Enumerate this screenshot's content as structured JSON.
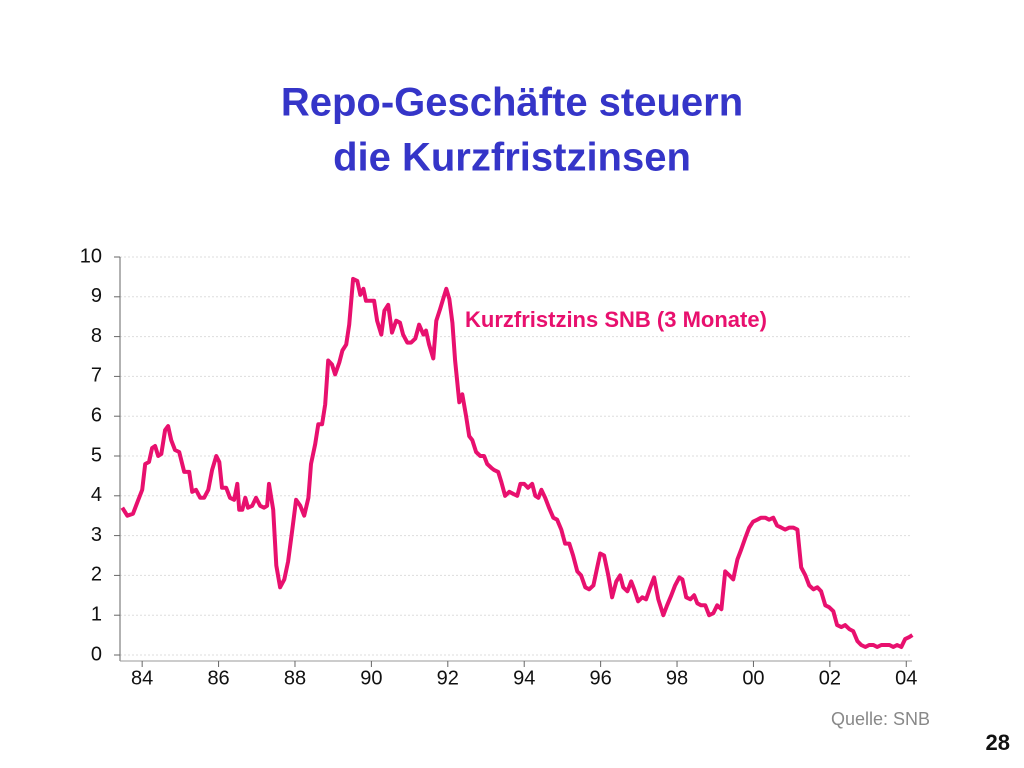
{
  "chart_data": {
    "type": "line",
    "title": [
      "Repo-Geschäfte steuern",
      "die Kurzfristzinsen"
    ],
    "source": "Quelle: SNB",
    "page_number": "28",
    "xlim": [
      1983.42,
      2004.15
    ],
    "ylim": [
      0,
      10
    ],
    "yticks": [
      0,
      1,
      2,
      3,
      4,
      5,
      6,
      7,
      8,
      9,
      10
    ],
    "xticks": [
      {
        "value": 1984,
        "label": "84"
      },
      {
        "value": 1986,
        "label": "86"
      },
      {
        "value": 1988,
        "label": "88"
      },
      {
        "value": 1990,
        "label": "90"
      },
      {
        "value": 1992,
        "label": "92"
      },
      {
        "value": 1994,
        "label": "94"
      },
      {
        "value": 1996,
        "label": "96"
      },
      {
        "value": 1998,
        "label": "98"
      },
      {
        "value": 2000,
        "label": "00"
      },
      {
        "value": 2002,
        "label": "02"
      },
      {
        "value": 2004,
        "label": "04"
      }
    ],
    "grid": true,
    "x": [
      1983.48,
      1983.61,
      1983.76,
      1983.9,
      1984.0,
      1984.08,
      1984.18,
      1984.26,
      1984.34,
      1984.42,
      1984.5,
      1984.6,
      1984.68,
      1984.76,
      1984.86,
      1984.97,
      1985.1,
      1985.23,
      1985.31,
      1985.41,
      1985.52,
      1985.62,
      1985.73,
      1985.83,
      1985.94,
      1986.02,
      1986.09,
      1986.2,
      1986.3,
      1986.41,
      1986.49,
      1986.54,
      1986.62,
      1986.7,
      1986.77,
      1986.88,
      1986.98,
      1987.09,
      1987.19,
      1987.27,
      1987.32,
      1987.43,
      1987.51,
      1987.61,
      1987.72,
      1987.82,
      1987.93,
      1988.03,
      1988.14,
      1988.24,
      1988.35,
      1988.42,
      1988.53,
      1988.61,
      1988.71,
      1988.79,
      1988.87,
      1988.97,
      1989.05,
      1989.16,
      1989.24,
      1989.34,
      1989.42,
      1989.52,
      1989.63,
      1989.71,
      1989.79,
      1989.86,
      1989.97,
      1990.07,
      1990.15,
      1990.26,
      1990.34,
      1990.44,
      1990.54,
      1990.65,
      1990.75,
      1990.83,
      1990.94,
      1991.04,
      1991.15,
      1991.25,
      1991.36,
      1991.43,
      1991.51,
      1991.62,
      1991.7,
      1991.8,
      1991.88,
      1991.96,
      1992.04,
      1992.12,
      1992.19,
      1992.3,
      1992.38,
      1992.48,
      1992.56,
      1992.64,
      1992.74,
      1992.85,
      1992.95,
      1993.03,
      1993.14,
      1993.21,
      1993.32,
      1993.4,
      1993.5,
      1993.61,
      1993.71,
      1993.82,
      1993.9,
      1994.0,
      1994.1,
      1994.21,
      1994.29,
      1994.37,
      1994.45,
      1994.55,
      1994.65,
      1994.76,
      1994.86,
      1994.97,
      1995.07,
      1995.18,
      1995.28,
      1995.39,
      1995.49,
      1995.6,
      1995.7,
      1995.81,
      1995.91,
      1995.99,
      1996.09,
      1996.2,
      1996.3,
      1996.41,
      1996.51,
      1996.59,
      1996.7,
      1996.8,
      1996.88,
      1996.98,
      1997.09,
      1997.19,
      1997.3,
      1997.4,
      1997.51,
      1997.64,
      1997.74,
      1997.85,
      1997.95,
      1998.06,
      1998.14,
      1998.24,
      1998.35,
      1998.45,
      1998.53,
      1998.63,
      1998.74,
      1998.84,
      1998.95,
      1999.05,
      1999.16,
      1999.26,
      1999.37,
      1999.47,
      1999.58,
      1999.68,
      1999.79,
      1999.89,
      1999.99,
      2000.1,
      2000.2,
      2000.31,
      2000.41,
      2000.52,
      2000.62,
      2000.73,
      2000.83,
      2000.94,
      2001.04,
      2001.15,
      2001.25,
      2001.36,
      2001.46,
      2001.57,
      2001.67,
      2001.77,
      2001.88,
      2001.98,
      2002.09,
      2002.19,
      2002.3,
      2002.4,
      2002.51,
      2002.61,
      2002.72,
      2002.82,
      2002.93,
      2003.03,
      2003.14,
      2003.24,
      2003.35,
      2003.45,
      2003.56,
      2003.66,
      2003.76,
      2003.87,
      2003.97,
      2004.08,
      2004.16
    ],
    "series": [
      {
        "name": "Kurzfristzins SNB (3 Monate)",
        "color": "#e8106e",
        "values": [
          3.7,
          3.5,
          3.55,
          3.9,
          4.15,
          4.8,
          4.85,
          5.2,
          5.25,
          5.0,
          5.05,
          5.65,
          5.75,
          5.4,
          5.15,
          5.1,
          4.6,
          4.6,
          4.1,
          4.15,
          3.95,
          3.95,
          4.15,
          4.65,
          5.0,
          4.85,
          4.2,
          4.2,
          3.95,
          3.9,
          4.3,
          3.65,
          3.65,
          3.95,
          3.7,
          3.75,
          3.95,
          3.75,
          3.7,
          3.75,
          4.3,
          3.65,
          2.25,
          1.7,
          1.9,
          2.35,
          3.15,
          3.9,
          3.75,
          3.5,
          3.95,
          4.8,
          5.3,
          5.8,
          5.8,
          6.3,
          7.4,
          7.3,
          7.05,
          7.35,
          7.65,
          7.8,
          8.3,
          9.45,
          9.4,
          9.05,
          9.2,
          8.9,
          8.9,
          8.9,
          8.4,
          8.05,
          8.65,
          8.8,
          8.1,
          8.4,
          8.35,
          8.05,
          7.85,
          7.85,
          7.95,
          8.3,
          8.05,
          8.15,
          7.8,
          7.45,
          8.4,
          8.7,
          8.95,
          9.2,
          8.95,
          8.35,
          7.4,
          6.35,
          6.55,
          6.0,
          5.5,
          5.4,
          5.1,
          5.0,
          5.0,
          4.8,
          4.7,
          4.65,
          4.6,
          4.35,
          4.0,
          4.1,
          4.05,
          4.0,
          4.3,
          4.3,
          4.2,
          4.3,
          4.0,
          3.95,
          4.15,
          3.95,
          3.7,
          3.45,
          3.4,
          3.15,
          2.8,
          2.8,
          2.5,
          2.1,
          2.0,
          1.7,
          1.65,
          1.75,
          2.2,
          2.55,
          2.5,
          2.0,
          1.45,
          1.85,
          2.0,
          1.7,
          1.6,
          1.85,
          1.65,
          1.35,
          1.45,
          1.4,
          1.7,
          1.95,
          1.4,
          1.0,
          1.25,
          1.5,
          1.75,
          1.95,
          1.9,
          1.45,
          1.4,
          1.5,
          1.3,
          1.25,
          1.25,
          1.0,
          1.05,
          1.25,
          1.15,
          2.1,
          2.0,
          1.9,
          2.4,
          2.65,
          2.95,
          3.2,
          3.35,
          3.4,
          3.45,
          3.45,
          3.4,
          3.45,
          3.25,
          3.2,
          3.15,
          3.2,
          3.2,
          3.15,
          2.2,
          2.0,
          1.75,
          1.65,
          1.7,
          1.6,
          1.25,
          1.2,
          1.1,
          0.75,
          0.7,
          0.75,
          0.65,
          0.6,
          0.35,
          0.25,
          0.2,
          0.25,
          0.25,
          0.2,
          0.25,
          0.25,
          0.25,
          0.2,
          0.25,
          0.2,
          0.4,
          0.45,
          0.5
        ]
      }
    ]
  }
}
